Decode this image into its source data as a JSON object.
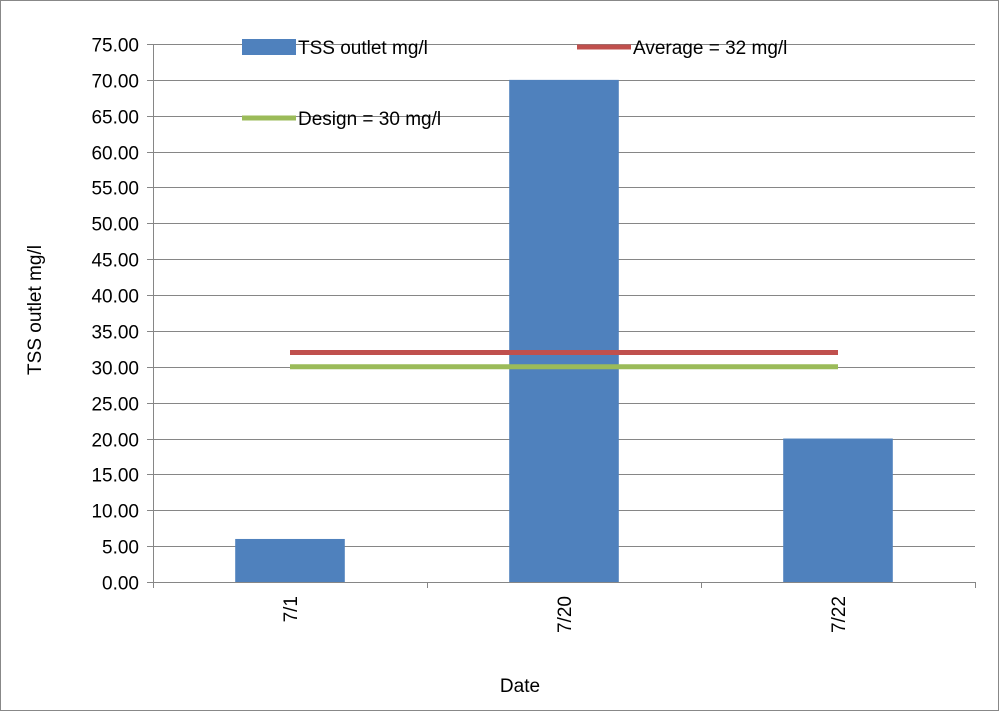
{
  "chart_data": {
    "type": "bar",
    "title": "",
    "xlabel": "Date",
    "ylabel": "TSS outlet mg/l",
    "categories": [
      "7/1",
      "7/20",
      "7/22"
    ],
    "ylim": [
      0,
      75
    ],
    "ytick_step": 5,
    "ytick_labels": [
      "0.00",
      "5.00",
      "10.00",
      "15.00",
      "20.00",
      "25.00",
      "30.00",
      "35.00",
      "40.00",
      "45.00",
      "50.00",
      "55.00",
      "60.00",
      "65.00",
      "70.00",
      "75.00"
    ],
    "grid": true,
    "legend_position": "top",
    "series": [
      {
        "name": "TSS outlet mg/l",
        "kind": "bar",
        "color": "#4F81BD",
        "values": [
          6,
          70,
          20
        ]
      },
      {
        "name": "Average = 32 mg/l",
        "kind": "line",
        "color": "#C0504D",
        "values": [
          32,
          32,
          32
        ]
      },
      {
        "name": "Design = 30 mg/l",
        "kind": "line",
        "color": "#9BBB59",
        "values": [
          30,
          30,
          30
        ]
      }
    ]
  }
}
